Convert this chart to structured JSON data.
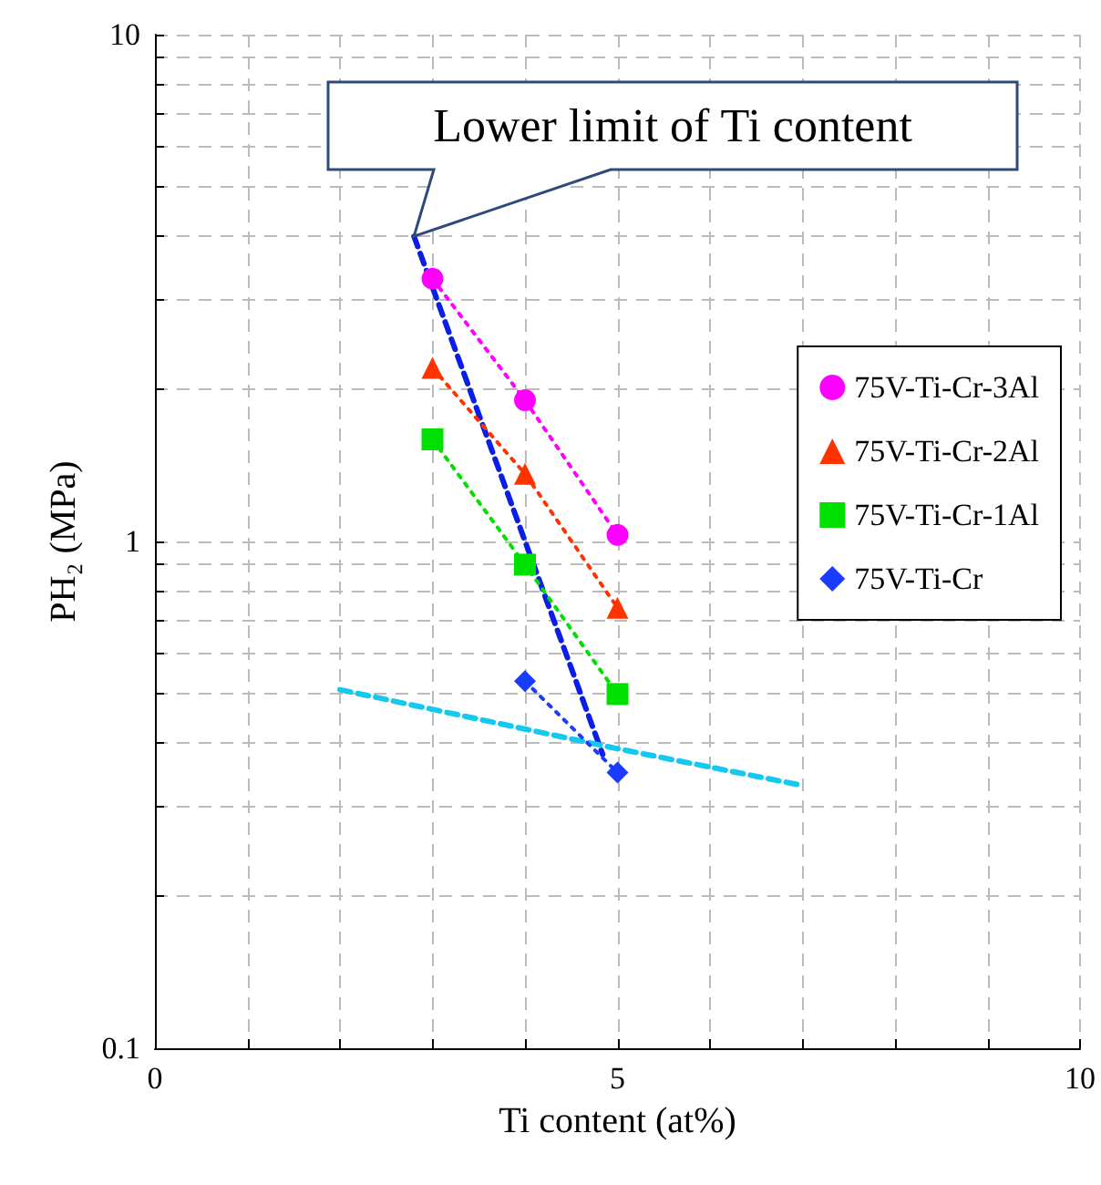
{
  "chart_data": {
    "type": "line",
    "xlabel": "Ti content (at%)",
    "ylabel": "PH₂ (MPa)",
    "xlim": [
      0,
      10
    ],
    "xticks": [
      0,
      {
        "value": 1,
        "label": null
      },
      {
        "value": 2,
        "label": null
      },
      {
        "value": 3,
        "label": null
      },
      {
        "value": 4,
        "label": null
      },
      5,
      {
        "value": 6,
        "label": null
      },
      {
        "value": 7,
        "label": null
      },
      {
        "value": 8,
        "label": null
      },
      {
        "value": 9,
        "label": null
      },
      10
    ],
    "ylim": [
      0.1,
      10
    ],
    "yticks": [
      0.1,
      {
        "value": 0.2,
        "label": null
      },
      {
        "value": 0.3,
        "label": null
      },
      {
        "value": 0.4,
        "label": null
      },
      {
        "value": 0.5,
        "label": null
      },
      {
        "value": 0.6,
        "label": null
      },
      {
        "value": 0.7,
        "label": null
      },
      {
        "value": 0.8,
        "label": null
      },
      {
        "value": 0.9,
        "label": null
      },
      1,
      {
        "value": 2,
        "label": null
      },
      {
        "value": 3,
        "label": null
      },
      {
        "value": 4,
        "label": null
      },
      {
        "value": 5,
        "label": null
      },
      {
        "value": 6,
        "label": null
      },
      {
        "value": 7,
        "label": null
      },
      {
        "value": 8,
        "label": null
      },
      {
        "value": 9,
        "label": null
      },
      10
    ],
    "log": "y",
    "grid": true,
    "legend": "right",
    "line_style": "dotted",
    "series": [
      {
        "name": "75V-Ti-Cr-3Al",
        "color": "#ff00ff",
        "marker": "circle",
        "x": [
          3,
          4,
          5
        ],
        "values": [
          3.3,
          1.9,
          1.03
        ]
      },
      {
        "name": "75V-Ti-Cr-2Al",
        "color": "#ff3300",
        "marker": "triangle",
        "x": [
          3,
          4,
          5
        ],
        "values": [
          2.2,
          1.36,
          0.74
        ]
      },
      {
        "name": "75V-Ti-Cr-1Al",
        "color": "#00e000",
        "marker": "square",
        "x": [
          3,
          4,
          5
        ],
        "values": [
          1.59,
          0.9,
          0.5
        ]
      },
      {
        "name": "75V-Ti-Cr",
        "color": "#1a3cff",
        "marker": "diamond",
        "x": [
          4,
          5
        ],
        "values": [
          0.53,
          0.35
        ]
      },
      {
        "color": "#0a1ee6",
        "marker": "none",
        "line_style": "dashed",
        "x": [
          2.8,
          4.84
        ],
        "values": [
          4.0,
          0.38
        ]
      },
      {
        "color": "#14c8f0",
        "marker": "none",
        "line_style": "dashed",
        "x": [
          2,
          5,
          7
        ],
        "values": [
          0.51,
          0.39,
          0.33
        ]
      }
    ],
    "annotations": [
      {
        "text": "Lower limit of Ti content",
        "x": 2.8,
        "y": 4.0
      }
    ]
  }
}
